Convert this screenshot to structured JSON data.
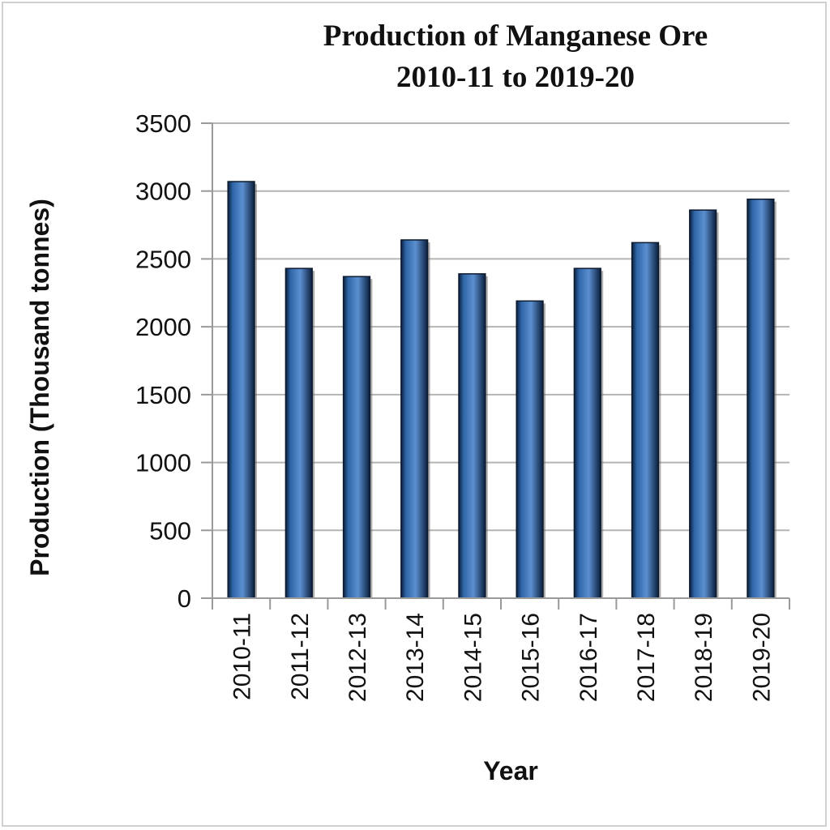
{
  "chart_data": {
    "type": "bar",
    "title_line1": "Production of Manganese Ore",
    "title_line2": "2010-11 to 2019-20",
    "xlabel": "Year",
    "ylabel": "Production (Thousand tonnes)",
    "categories": [
      "2010-11",
      "2011-12",
      "2012-13",
      "2013-14",
      "2014-15",
      "2015-16",
      "2016-17",
      "2017-18",
      "2018-19",
      "2019-20"
    ],
    "values": [
      3070,
      2430,
      2370,
      2640,
      2390,
      2190,
      2430,
      2620,
      2860,
      2940
    ],
    "ylim": [
      0,
      3500
    ],
    "yticks": [
      "0",
      "500",
      "1000",
      "1500",
      "2000",
      "2500",
      "3000",
      "3500"
    ],
    "grid": true,
    "legend": "none",
    "colors": {
      "bar": "#2f66a8",
      "bar_dark": "#0a1f3d",
      "bar_light": "#5b8fd0",
      "grid": "#b4b4b4",
      "axis": "#9a9a9a"
    }
  }
}
